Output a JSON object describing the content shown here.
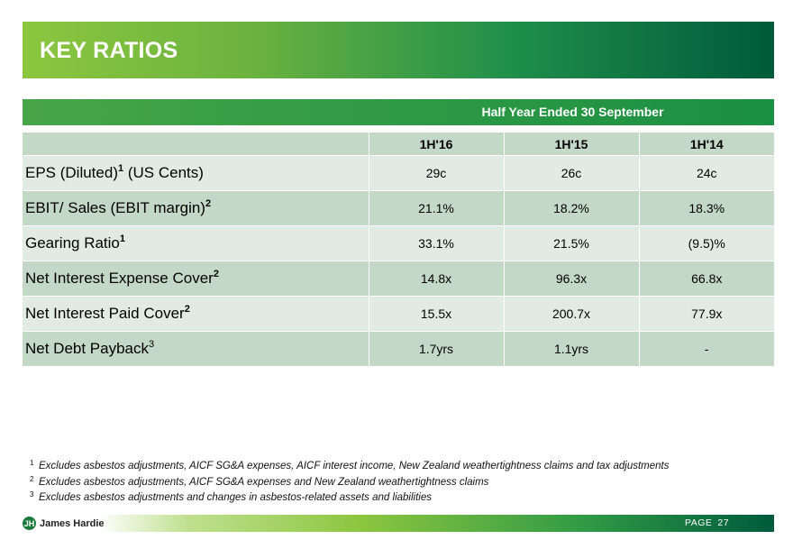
{
  "slide": {
    "title": "KEY RATIOS",
    "period_header": "Half Year Ended 30 September"
  },
  "table": {
    "columns": [
      "1H'16",
      "1H'15",
      "1H'14"
    ],
    "rows": [
      {
        "label": "EPS (Diluted)",
        "sup": "1",
        "label_suffix": " (US Cents)",
        "values": [
          "29c",
          "26c",
          "24c"
        ]
      },
      {
        "label": "EBIT/ Sales (EBIT margin)",
        "sup": "2",
        "label_suffix": "",
        "values": [
          "21.1%",
          "18.2%",
          "18.3%"
        ]
      },
      {
        "label": "Gearing Ratio",
        "sup": "1",
        "label_suffix": "",
        "values": [
          "33.1%",
          "21.5%",
          "(9.5)%"
        ]
      },
      {
        "label": "Net Interest Expense Cover",
        "sup": "2",
        "label_suffix": "",
        "values": [
          "14.8x",
          "96.3x",
          "66.8x"
        ]
      },
      {
        "label": "Net Interest Paid Cover",
        "sup": "2",
        "label_suffix": "",
        "values": [
          "15.5x",
          "200.7x",
          "77.9x"
        ]
      },
      {
        "label": "Net Debt Payback",
        "sup": "3",
        "label_suffix": "",
        "values": [
          "1.7yrs",
          "1.1yrs",
          "-"
        ]
      }
    ]
  },
  "footnotes": [
    {
      "num": "1",
      "text": "Excludes asbestos adjustments, AICF SG&A expenses, AICF interest income, New Zealand weathertightness claims and tax adjustments"
    },
    {
      "num": "2",
      "text": "Excludes asbestos adjustments, AICF SG&A expenses and New Zealand weathertightness claims"
    },
    {
      "num": "3",
      "text": "Excludes asbestos adjustments and changes in asbestos-related assets and liabilities"
    }
  ],
  "footer": {
    "logo_mark": "JH",
    "logo_text": "James Hardie",
    "page_label": "PAGE",
    "page_number": "27"
  },
  "colors": {
    "title_gradient_start": "#8cc63f",
    "title_gradient_end": "#005a3c",
    "period_bar": "#2f9a45",
    "row_light": "#e2ebe3",
    "row_dark": "#c4d8c8"
  }
}
